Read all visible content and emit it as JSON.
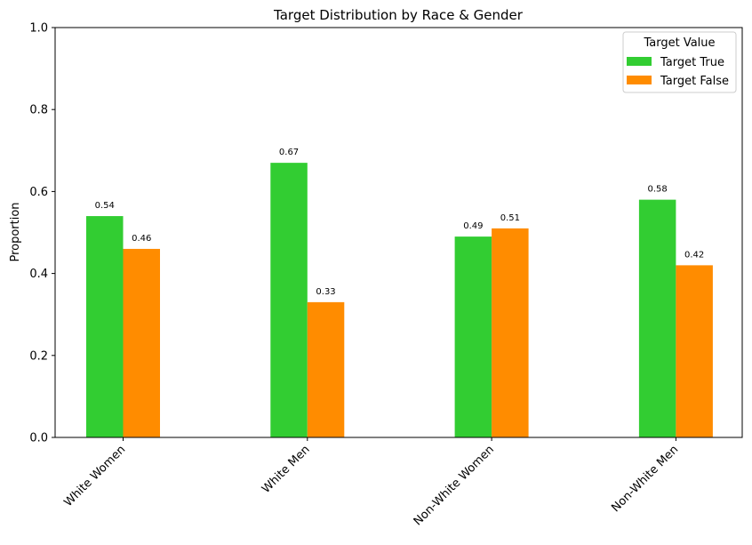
{
  "chart_data": {
    "type": "bar",
    "title": "Target Distribution by Race & Gender",
    "xlabel": "",
    "ylabel": "Proportion",
    "ylim": [
      0,
      1.0
    ],
    "yticks": [
      "0.0",
      "0.2",
      "0.4",
      "0.6",
      "0.8",
      "1.0"
    ],
    "categories": [
      "White Women",
      "White Men",
      "Non-White Women",
      "Non-White Men"
    ],
    "series": [
      {
        "name": "Target True",
        "color": "#32cd32",
        "values": [
          0.54,
          0.67,
          0.49,
          0.58
        ],
        "labels": [
          "0.54",
          "0.67",
          "0.49",
          "0.58"
        ]
      },
      {
        "name": "Target False",
        "color": "#ff8c00",
        "values": [
          0.46,
          0.33,
          0.51,
          0.42
        ],
        "labels": [
          "0.46",
          "0.33",
          "0.51",
          "0.42"
        ]
      }
    ],
    "legend": {
      "title": "Target Value",
      "position": "top-right"
    },
    "grid": false
  }
}
